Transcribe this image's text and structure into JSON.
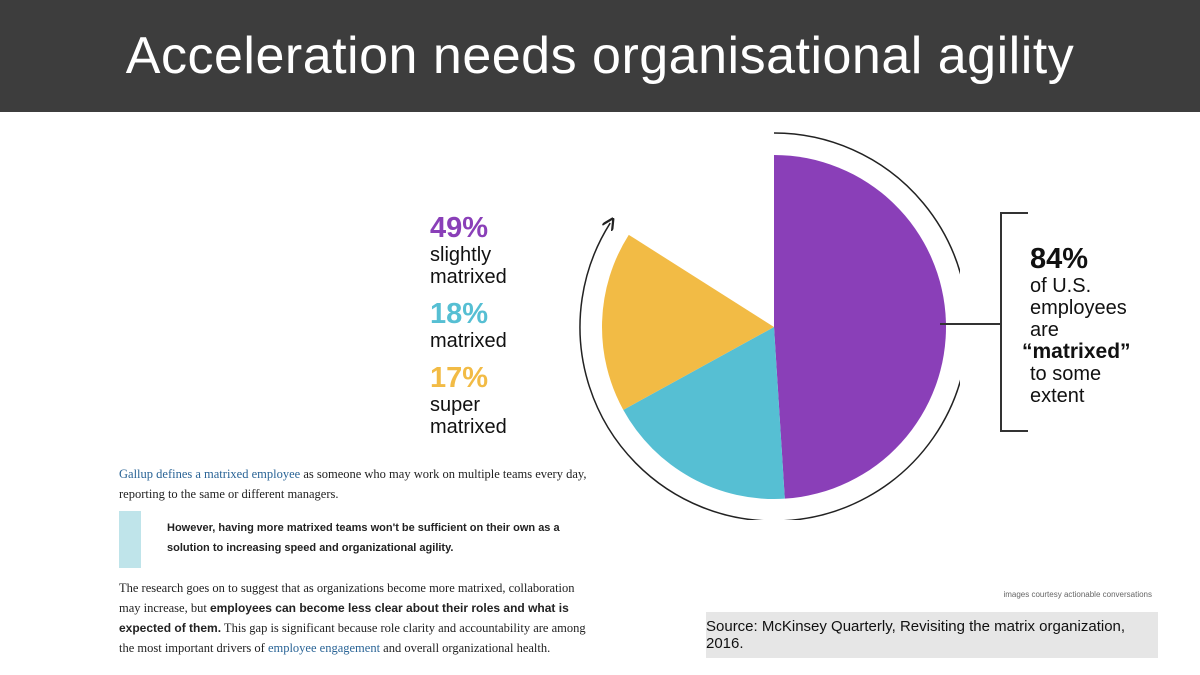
{
  "title": "Acceleration needs organisational agility",
  "chart_data": {
    "type": "pie",
    "slices": [
      {
        "label": "slightly matrixed",
        "value": 49,
        "display": "49%",
        "color": "#8a3fb8"
      },
      {
        "label": "matrixed",
        "value": 18,
        "display": "18%",
        "color": "#56bfd3"
      },
      {
        "label": "super matrixed",
        "value": 17,
        "display": "17%",
        "color": "#f2bb45"
      }
    ],
    "total_matrixed": {
      "value": 84,
      "display": "84%"
    }
  },
  "legend": [
    {
      "pct": "49%",
      "line1": "slightly",
      "line2": "matrixed",
      "color": "#8a3fb8"
    },
    {
      "pct": "18%",
      "line1": "matrixed",
      "line2": "",
      "color": "#56bfd3"
    },
    {
      "pct": "17%",
      "line1": "super",
      "line2": "matrixed",
      "color": "#f2bb45"
    }
  ],
  "callout": {
    "pct": "84%",
    "line1": "of U.S.",
    "line2": "employees",
    "line3": "are",
    "line4": "“matrixed”",
    "line5": "to some",
    "line6": "extent"
  },
  "text": {
    "p1_link": "Gallup defines a matrixed employee",
    "p1_rest": " as someone who may work on multiple teams every day, reporting to the same or different managers.",
    "quote": "However, having more matrixed teams won't be sufficient on their own as a solution to increasing speed and organizational agility.",
    "p3_a": "The research goes on to suggest that as organizations become more matrixed, collaboration may increase, but ",
    "p3_bold": "employees can become less clear about their roles and what is expected of them.",
    "p3_b": " This gap is significant because role clarity and accountability are among the most important drivers of ",
    "p3_link": "employee engagement",
    "p3_c": " and overall organizational health."
  },
  "credit": "images courtesy actionable conversations",
  "source": "Source: McKinsey Quarterly, Revisiting the matrix organization, 2016."
}
